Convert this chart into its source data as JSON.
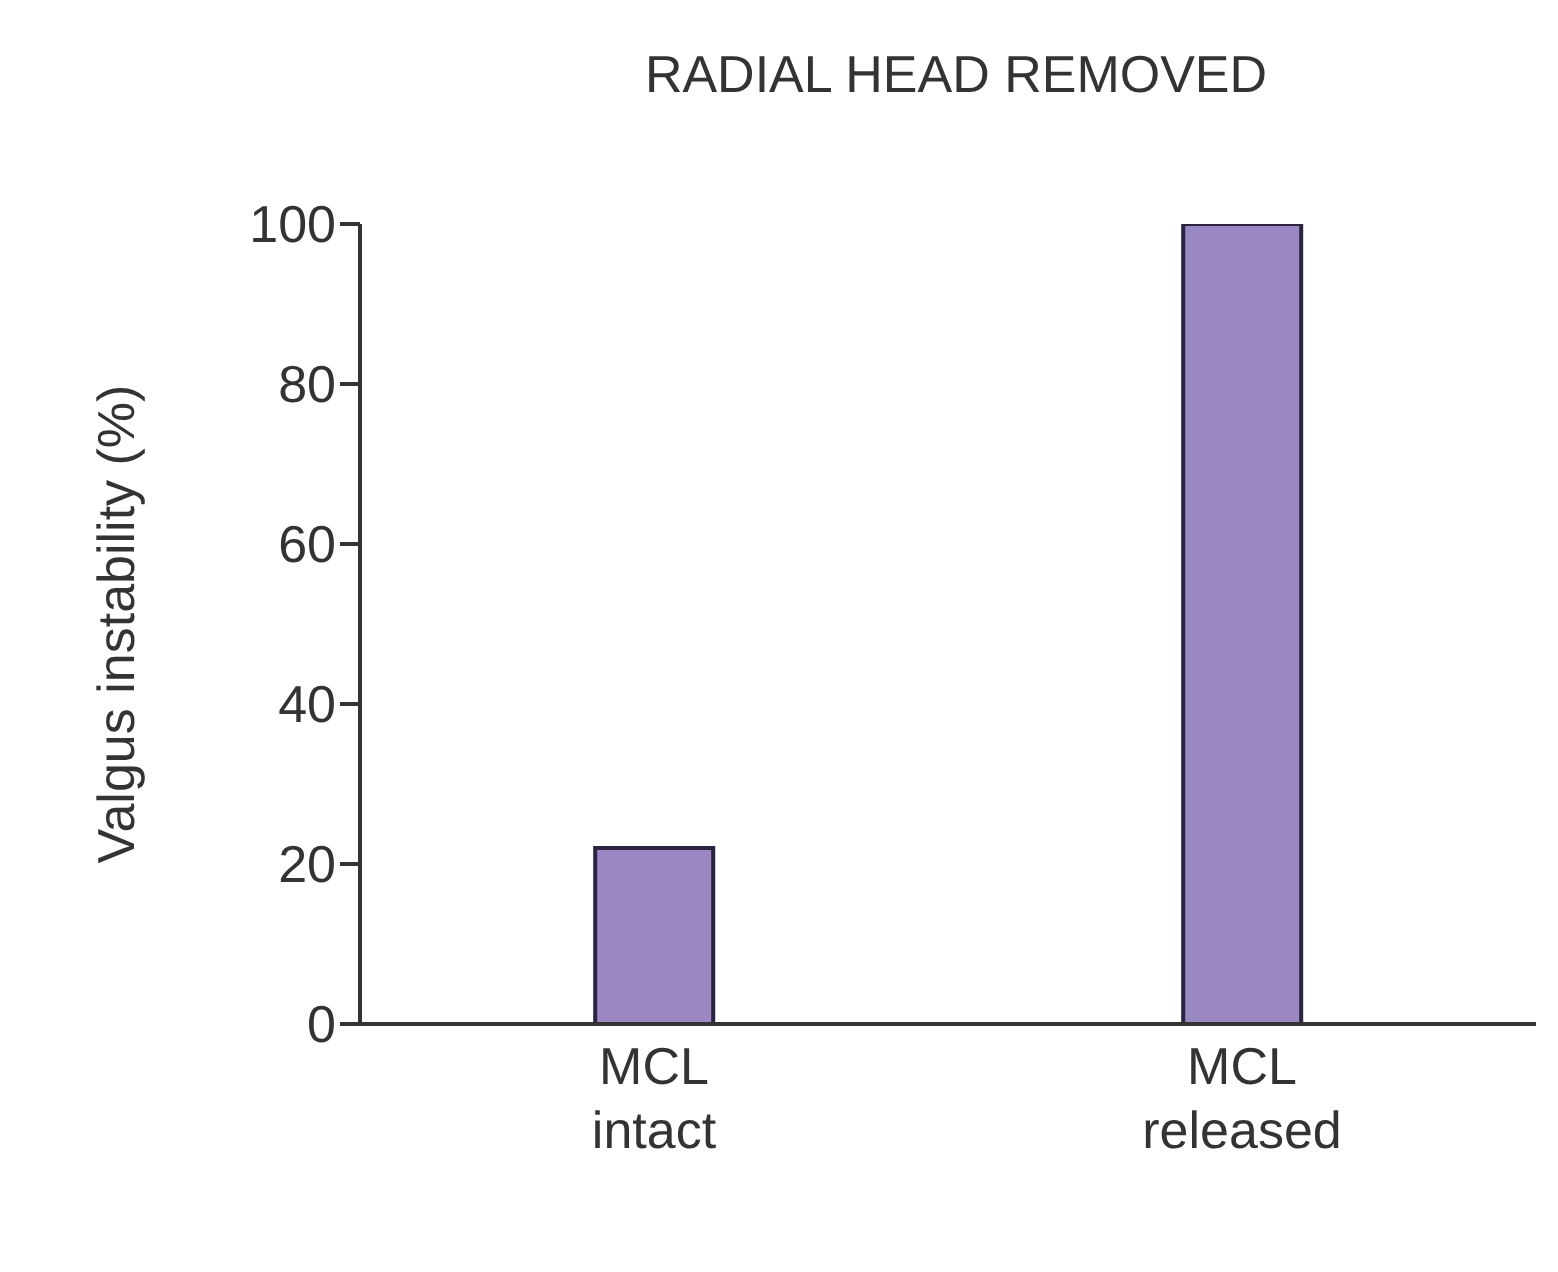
{
  "chart_data": {
    "type": "bar",
    "title": "RADIAL HEAD REMOVED",
    "ylabel": "Valgus instability (%)",
    "categories": [
      "MCL\nintact",
      "MCL\nreleased"
    ],
    "values": [
      22,
      100
    ],
    "color": "#9b88c2",
    "ylim": [
      0,
      100
    ],
    "yticks": [
      0,
      20,
      40,
      60,
      80,
      100
    ]
  }
}
